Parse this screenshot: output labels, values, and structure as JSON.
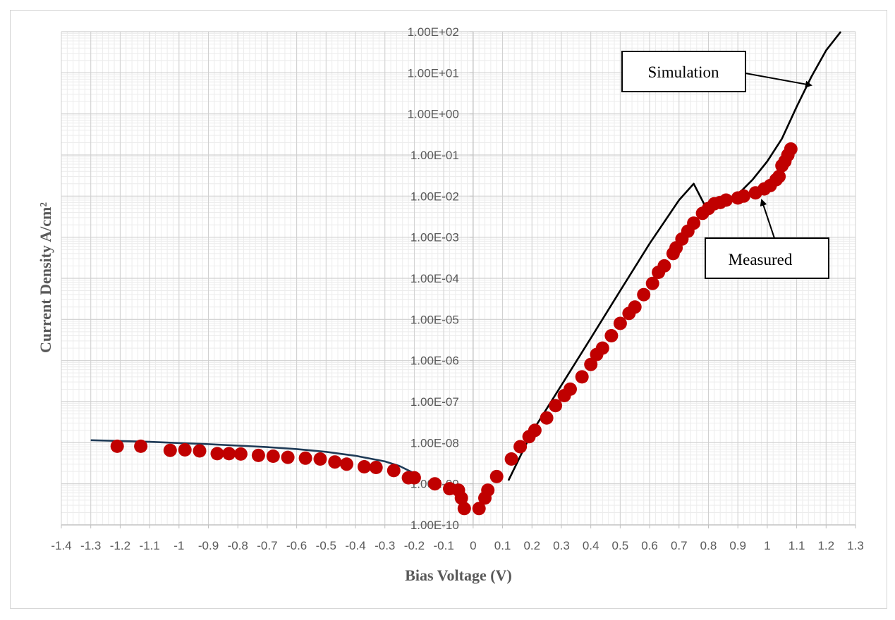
{
  "chart_data": {
    "type": "scatter",
    "xlabel": "Bias Voltage (V)",
    "ylabel": "Current Density A/cm²",
    "xlim": [
      -1.4,
      1.3
    ],
    "ylim": [
      1e-10,
      100
    ],
    "yscale": "log",
    "grid": true,
    "x_ticks": [
      "-1.4",
      "-1.3",
      "-1.2",
      "-1.1",
      "-1",
      "-0.9",
      "-0.8",
      "-0.7",
      "-0.6",
      "-0.5",
      "-0.4",
      "-0.3",
      "-0.2",
      "-0.1",
      "0",
      "0.1",
      "0.2",
      "0.3",
      "0.4",
      "0.5",
      "0.6",
      "0.7",
      "0.8",
      "0.9",
      "1",
      "1.1",
      "1.2",
      "1.3"
    ],
    "y_ticks": [
      "1.00E-10",
      "1.00E-09",
      "1.00E-08",
      "1.00E-07",
      "1.00E-06",
      "1.00E-05",
      "1.00E-04",
      "1.00E-03",
      "1.00E-02",
      "1.00E-01",
      "1.00E+00",
      "1.00E+01",
      "1.00E+02"
    ],
    "annotations": [
      {
        "text": "Simulation",
        "target_series": "simulation"
      },
      {
        "text": "Measured",
        "target_series": "measured"
      }
    ],
    "series": [
      {
        "id": "simulation-reverse",
        "type": "line",
        "color": "#1f3b57",
        "points": [
          [
            -1.3,
            1.15e-08
          ],
          [
            -1.2,
            1.1e-08
          ],
          [
            -1.1,
            1.05e-08
          ],
          [
            -1.0,
            9.8e-09
          ],
          [
            -0.9,
            9.2e-09
          ],
          [
            -0.8,
            8.5e-09
          ],
          [
            -0.7,
            7.8e-09
          ],
          [
            -0.6,
            7e-09
          ],
          [
            -0.5,
            6e-09
          ],
          [
            -0.4,
            4.8e-09
          ],
          [
            -0.3,
            3.5e-09
          ],
          [
            -0.25,
            2.7e-09
          ],
          [
            -0.2,
            1.8e-09
          ]
        ]
      },
      {
        "id": "simulation-forward",
        "type": "line",
        "color": "#000000",
        "points": [
          [
            0.12,
            1.2e-09
          ],
          [
            0.2,
            1.8e-08
          ],
          [
            0.3,
            2.5e-07
          ],
          [
            0.4,
            3.5e-06
          ],
          [
            0.5,
            5e-05
          ],
          [
            0.6,
            0.0007
          ],
          [
            0.7,
            0.008
          ],
          [
            0.75,
            0.02
          ],
          [
            0.8,
            0.004
          ],
          [
            0.85,
            0.0065
          ],
          [
            0.9,
            0.011
          ],
          [
            0.95,
            0.025
          ],
          [
            1.0,
            0.07
          ],
          [
            1.05,
            0.25
          ],
          [
            1.1,
            1.5
          ],
          [
            1.15,
            8.0
          ],
          [
            1.2,
            35
          ],
          [
            1.25,
            100
          ]
        ]
      },
      {
        "id": "measured",
        "type": "scatter",
        "color": "#c00000",
        "points": [
          [
            -1.21,
            8.2e-09
          ],
          [
            -1.13,
            8.2e-09
          ],
          [
            -1.03,
            6.5e-09
          ],
          [
            -0.98,
            6.7e-09
          ],
          [
            -0.93,
            6.3e-09
          ],
          [
            -0.87,
            5.4e-09
          ],
          [
            -0.83,
            5.4e-09
          ],
          [
            -0.79,
            5.3e-09
          ],
          [
            -0.73,
            4.9e-09
          ],
          [
            -0.68,
            4.7e-09
          ],
          [
            -0.63,
            4.4e-09
          ],
          [
            -0.57,
            4.2e-09
          ],
          [
            -0.52,
            4e-09
          ],
          [
            -0.47,
            3.4e-09
          ],
          [
            -0.43,
            3e-09
          ],
          [
            -0.37,
            2.6e-09
          ],
          [
            -0.33,
            2.5e-09
          ],
          [
            -0.27,
            2.1e-09
          ],
          [
            -0.22,
            1.4e-09
          ],
          [
            -0.2,
            1.4e-09
          ],
          [
            -0.13,
            1e-09
          ],
          [
            -0.08,
            7.6e-10
          ],
          [
            -0.05,
            7e-10
          ],
          [
            -0.04,
            4.5e-10
          ],
          [
            -0.03,
            2.5e-10
          ],
          [
            0.02,
            2.5e-10
          ],
          [
            0.04,
            4.5e-10
          ],
          [
            0.05,
            7e-10
          ],
          [
            0.08,
            1.5e-09
          ],
          [
            0.13,
            4e-09
          ],
          [
            0.16,
            8e-09
          ],
          [
            0.19,
            1.4e-08
          ],
          [
            0.21,
            2e-08
          ],
          [
            0.25,
            4e-08
          ],
          [
            0.28,
            8e-08
          ],
          [
            0.31,
            1.4e-07
          ],
          [
            0.33,
            2e-07
          ],
          [
            0.37,
            4e-07
          ],
          [
            0.4,
            8e-07
          ],
          [
            0.42,
            1.4e-06
          ],
          [
            0.44,
            2e-06
          ],
          [
            0.47,
            4e-06
          ],
          [
            0.5,
            8e-06
          ],
          [
            0.53,
            1.4e-05
          ],
          [
            0.55,
            2e-05
          ],
          [
            0.58,
            4e-05
          ],
          [
            0.61,
            7.5e-05
          ],
          [
            0.63,
            0.00014
          ],
          [
            0.65,
            0.0002
          ],
          [
            0.68,
            0.0004
          ],
          [
            0.69,
            0.00055
          ],
          [
            0.71,
            0.0009
          ],
          [
            0.73,
            0.0014
          ],
          [
            0.75,
            0.0022
          ],
          [
            0.78,
            0.0038
          ],
          [
            0.8,
            0.005
          ],
          [
            0.82,
            0.0065
          ],
          [
            0.84,
            0.007
          ],
          [
            0.86,
            0.008
          ],
          [
            0.9,
            0.009
          ],
          [
            0.92,
            0.01
          ],
          [
            0.96,
            0.012
          ],
          [
            0.99,
            0.015
          ],
          [
            1.01,
            0.018
          ],
          [
            1.03,
            0.025
          ],
          [
            1.04,
            0.03
          ],
          [
            1.05,
            0.055
          ],
          [
            1.06,
            0.07
          ],
          [
            1.07,
            0.1
          ],
          [
            1.08,
            0.14
          ]
        ]
      }
    ]
  }
}
